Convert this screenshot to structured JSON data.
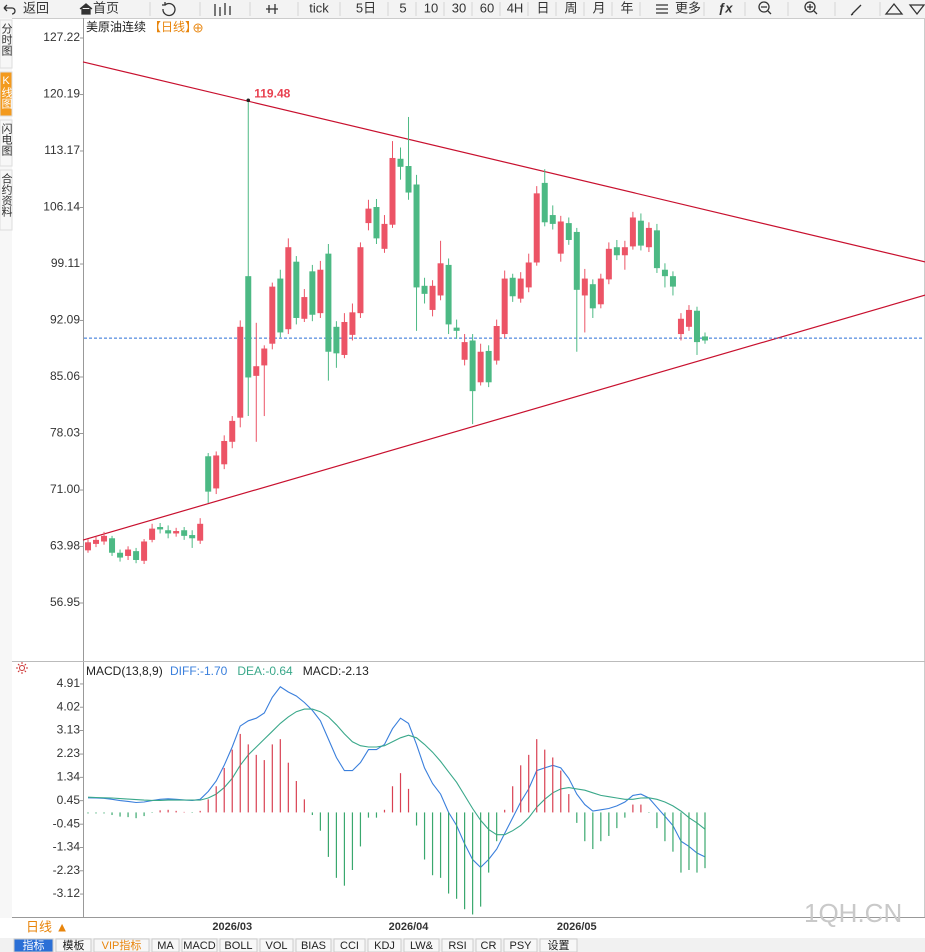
{
  "toolbar": [
    "返回",
    "首页",
    "tick",
    "5日",
    "5",
    "10",
    "30",
    "60",
    "4H",
    "日",
    "周",
    "月",
    "年",
    "更多"
  ],
  "side_tabs": [
    "分时图",
    "K线图",
    "闪电图",
    "合约资料"
  ],
  "chart_data": [
    {
      "type": "candlestick",
      "title": "美原油连续",
      "subtitle": "【日线】",
      "up_color": "#ec5466",
      "down_color": "#4cb984",
      "open": [
        63.5,
        64.3,
        64.6,
        65,
        63.2,
        62.8,
        63.4,
        62.2,
        64.8,
        66.4,
        66,
        65.6,
        66,
        65.4,
        64.7,
        75.2,
        71.2,
        74.2,
        77,
        80,
        97.6,
        85.2,
        86.5,
        89.2,
        97.3,
        91,
        99.4,
        92.3,
        98.2,
        93,
        100.4,
        91.3,
        87.8,
        90.3,
        93,
        104.2,
        106.2,
        101,
        104,
        112.2,
        111.3,
        109,
        96.4,
        93.4,
        95.2,
        99,
        91.2,
        87.2,
        89.6,
        84.4,
        88.3,
        87.1,
        90.4,
        97.4,
        94.8,
        96.2,
        99.3,
        109.2,
        105.2,
        100.4,
        104.2,
        103.1,
        95.2,
        96.6,
        94.1,
        97.2,
        101.2,
        100.2,
        101.3,
        104.5,
        101.2,
        103.3,
        98.4,
        97.6,
        90.4,
        91.3,
        93.3,
        90.1
      ],
      "high": [
        64.9,
        65.2,
        65.8,
        65.3,
        63.6,
        64,
        63.8,
        64.9,
        66.8,
        66.9,
        66.6,
        66.3,
        66.4,
        66,
        67.5,
        75.6,
        75.8,
        77.8,
        80.2,
        92.1,
        119.48,
        91.8,
        89,
        96.8,
        98.4,
        102.3,
        100.1,
        96,
        99,
        99.5,
        101.6,
        92,
        93,
        94.2,
        101.8,
        107.1,
        107.2,
        105.2,
        114.4,
        113.6,
        117.4,
        110.2,
        97.4,
        97.1,
        102,
        99.8,
        92.2,
        90.4,
        90.4,
        89.2,
        89,
        92.2,
        98.3,
        97.9,
        98.1,
        100.4,
        108.8,
        110.9,
        106.4,
        105.1,
        104.9,
        103.6,
        98.5,
        97.2,
        97.9,
        101.8,
        102.1,
        102,
        105.6,
        105.4,
        104.3,
        104.1,
        99.2,
        98.2,
        93,
        94,
        93.8,
        90.6
      ],
      "low": [
        63.2,
        63.9,
        64.2,
        62.8,
        62.1,
        62.3,
        61.9,
        61.8,
        64.5,
        65.6,
        65,
        65.2,
        64.8,
        63.8,
        64.3,
        69.4,
        70.5,
        73.6,
        76.2,
        78.8,
        80.2,
        77,
        80.2,
        88.5,
        90,
        90.4,
        91.6,
        91.9,
        92,
        92.4,
        84.6,
        86.2,
        87.4,
        89.6,
        92.4,
        103.3,
        101.6,
        100.5,
        103.6,
        109.6,
        107.1,
        90.8,
        94.2,
        92.6,
        94.6,
        90.4,
        89.8,
        86.5,
        79.2,
        84,
        83.8,
        86.6,
        89.9,
        94.4,
        94.3,
        95.6,
        98.9,
        103.8,
        103.4,
        99.4,
        101.5,
        88.2,
        90.6,
        92.4,
        93.6,
        96.6,
        99.6,
        98.4,
        100.9,
        100.8,
        100.6,
        98,
        96.2,
        95.2,
        89.6,
        90.8,
        87.8,
        89.2
      ],
      "close": [
        64.5,
        64.8,
        65.3,
        63.2,
        62.6,
        63.6,
        62.3,
        64.6,
        66.2,
        66.1,
        65.6,
        65.9,
        65.3,
        65,
        66.8,
        70.8,
        75.3,
        77.1,
        79.6,
        91.3,
        85,
        86.4,
        88.6,
        96.3,
        90.6,
        101.2,
        92.4,
        95,
        92.8,
        98.4,
        88.2,
        88,
        91.9,
        93.1,
        101.2,
        106,
        102.3,
        104.1,
        112.3,
        111.2,
        108,
        96.2,
        95.4,
        96.4,
        99.2,
        91.6,
        90.8,
        89.4,
        83.3,
        88.2,
        84.4,
        91.4,
        97.3,
        95.1,
        97.3,
        99.3,
        107.9,
        104.3,
        104.1,
        104.4,
        102.1,
        95.9,
        97.3,
        93.6,
        97.3,
        101,
        100.2,
        101.2,
        104.9,
        101.4,
        103.6,
        98.6,
        97.6,
        96.3,
        92.3,
        93.4,
        89.4,
        89.6
      ],
      "ylim": [
        49.86,
        129.46
      ],
      "yticks": [
        127.22,
        120.19,
        113.17,
        106.14,
        99.11,
        92.09,
        85.06,
        78.03,
        {
          "value": 71,
          "label": "71.00"
        },
        63.98,
        56.95
      ],
      "trend_lines": [
        {
          "x": [
            -0.62,
            104.5
          ],
          "y": [
            124.24,
            99.36
          ],
          "color": "#c8102e"
        },
        {
          "x": [
            -0.62,
            104.5
          ],
          "y": [
            64.78,
            95.25
          ],
          "color": "#c8102e"
        }
      ],
      "price_line": {
        "value": 89.9,
        "color": "#2a6fd6"
      },
      "annotations": [
        {
          "x": 20,
          "y": 119.48,
          "color": "#e8404f"
        }
      ]
    },
    {
      "type": "macd",
      "title": "MACD(13,8,9)",
      "readouts": [
        "DIFF:-1.70",
        "DEA:-0.64",
        "MACD:-2.13"
      ],
      "categories": [
        null,
        null,
        null,
        null,
        null,
        null,
        null,
        null,
        null,
        null,
        null,
        null,
        null,
        null,
        null,
        null,
        null,
        null,
        "2026/03",
        null,
        null,
        null,
        null,
        null,
        null,
        null,
        null,
        null,
        null,
        null,
        null,
        null,
        null,
        null,
        null,
        null,
        null,
        null,
        null,
        null,
        "2026/04",
        null,
        null,
        null,
        null,
        null,
        null,
        null,
        null,
        null,
        null,
        null,
        null,
        null,
        null,
        null,
        null,
        null,
        null,
        null,
        null,
        "2026/05",
        null,
        null,
        null,
        null,
        null,
        null,
        null,
        null,
        null,
        null,
        null,
        null,
        null,
        null,
        null,
        null
      ],
      "series": [
        {
          "name": "DIFF",
          "color": "#3a7fdc",
          "values": [
            0.56,
            0.55,
            0.54,
            0.5,
            0.45,
            0.42,
            0.38,
            0.4,
            0.45,
            0.5,
            0.52,
            0.5,
            0.48,
            0.46,
            0.5,
            0.8,
            1.2,
            1.8,
            2.5,
            3.3,
            3.5,
            3.6,
            3.8,
            4.4,
            4.8,
            4.6,
            4.45,
            4.2,
            3.9,
            3.5,
            2.8,
            2.1,
            1.6,
            1.6,
            1.9,
            2.4,
            2.4,
            2.6,
            3.2,
            3.6,
            3.4,
            2.6,
            1.7,
            1.1,
            0.7,
            0,
            -0.5,
            -1.2,
            -1.8,
            -2.1,
            -1.8,
            -1.4,
            -0.8,
            -0.2,
            0.4,
            0.9,
            1.6,
            1.7,
            1.8,
            1.7,
            1.3,
            0.7,
            0.3,
            0.05,
            0.1,
            0.15,
            0.25,
            0.4,
            0.65,
            0.7,
            0.55,
            0.2,
            -0.15,
            -0.5,
            -1.1,
            -1.3,
            -1.55,
            -1.7
          ]
        },
        {
          "name": "DEA",
          "color": "#3aa88a",
          "values": [
            0.58,
            0.57,
            0.56,
            0.55,
            0.53,
            0.51,
            0.49,
            0.47,
            0.46,
            0.46,
            0.47,
            0.47,
            0.47,
            0.47,
            0.47,
            0.55,
            0.7,
            0.95,
            1.3,
            1.8,
            2.2,
            2.5,
            2.8,
            3.1,
            3.4,
            3.65,
            3.85,
            3.95,
            3.95,
            3.85,
            3.65,
            3.35,
            3,
            2.7,
            2.55,
            2.5,
            2.5,
            2.55,
            2.7,
            2.85,
            2.95,
            2.85,
            2.6,
            2.3,
            1.95,
            1.55,
            1.15,
            0.65,
            0.15,
            -0.3,
            -0.65,
            -0.85,
            -0.85,
            -0.7,
            -0.5,
            -0.2,
            0.2,
            0.5,
            0.75,
            0.9,
            0.95,
            0.9,
            0.85,
            0.75,
            0.65,
            0.6,
            0.55,
            0.5,
            0.5,
            0.55,
            0.56,
            0.5,
            0.4,
            0.25,
            0.05,
            -0.2,
            -0.4,
            -0.64
          ]
        },
        {
          "name": "MACD",
          "type": "bar",
          "up_color": "#d94052",
          "down_color": "#3aa86e",
          "values": [
            -0.04,
            -0.04,
            -0.04,
            -0.1,
            -0.16,
            -0.18,
            -0.22,
            -0.14,
            -0.02,
            0.08,
            0.1,
            0.06,
            0.02,
            -0.02,
            0.06,
            0.5,
            1,
            1.7,
            2.4,
            3,
            2.6,
            2.2,
            2,
            2.6,
            2.8,
            1.9,
            1.2,
            0.5,
            -0.1,
            -0.7,
            -1.7,
            -2.5,
            -2.8,
            -2.2,
            -1.3,
            -0.2,
            -0.2,
            0.1,
            1,
            1.5,
            0.9,
            -0.5,
            -1.8,
            -2.4,
            -2.5,
            -3.1,
            -3.3,
            -3.7,
            -3.9,
            -3.6,
            -2.3,
            -1.1,
            0.1,
            1,
            1.8,
            2.2,
            2.8,
            2.4,
            2.1,
            1.6,
            0.7,
            -0.4,
            -1.1,
            -1.4,
            -1.1,
            -0.9,
            -0.6,
            -0.2,
            0.3,
            0.3,
            -0.02,
            -0.6,
            -1.1,
            -1.5,
            -2.3,
            -2.2,
            -2.3,
            -2.13
          ]
        }
      ],
      "ylim": [
        -3.92,
        5.71
      ],
      "yticks": [
        4.91,
        4.02,
        3.13,
        2.23,
        1.34,
        0.45,
        -0.45,
        -1.34,
        -2.23,
        -3.12
      ]
    }
  ],
  "bottom": {
    "period": "日线 ▲",
    "watermark": "1QH.CN",
    "tabs": [
      "指标",
      "模板",
      "VIP指标",
      "MA",
      "MACD",
      "BOLL",
      "VOL",
      "BIAS",
      "CCI",
      "KDJ",
      "LW&",
      "RSI",
      "CR",
      "PSY",
      "设置"
    ]
  }
}
